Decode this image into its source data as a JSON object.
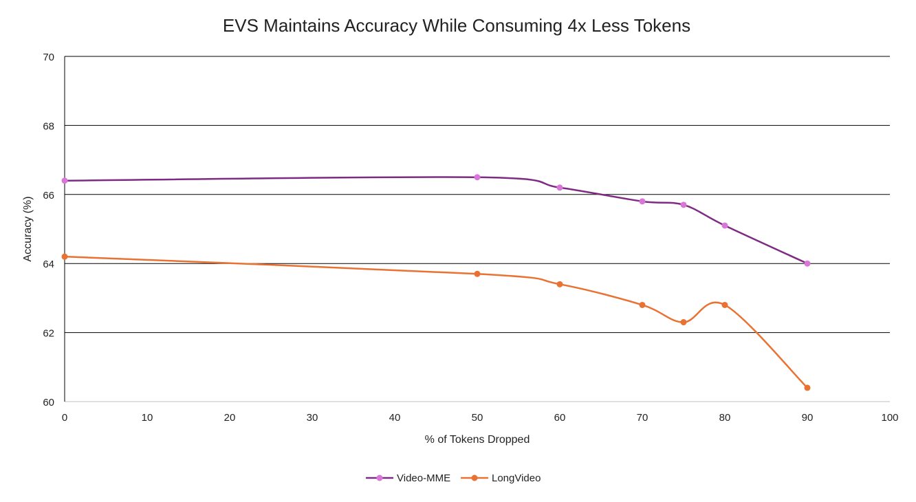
{
  "chart_data": {
    "type": "line",
    "title": "EVS Maintains Accuracy While Consuming 4x Less Tokens",
    "xlabel": "% of Tokens Dropped",
    "ylabel": "Accuracy (%)",
    "xlim": [
      0,
      100
    ],
    "ylim": [
      60,
      70
    ],
    "xticks": [
      0,
      10,
      20,
      30,
      40,
      50,
      60,
      70,
      80,
      90,
      100
    ],
    "yticks": [
      60,
      62,
      64,
      66,
      68,
      70
    ],
    "grid": "horizontal",
    "legend": "bottom",
    "smooth": true,
    "x": [
      0,
      50,
      60,
      70,
      75,
      80,
      90
    ],
    "series": [
      {
        "name": "Video-MME",
        "values": [
          66.4,
          66.5,
          66.2,
          65.8,
          65.7,
          65.1,
          64.0
        ],
        "line_color": "#7E2B84",
        "marker_color": "#D877D8"
      },
      {
        "name": "LongVideo",
        "values": [
          64.2,
          63.7,
          63.4,
          62.8,
          62.3,
          62.8,
          60.4
        ],
        "line_color": "#E97132",
        "marker_color": "#E97132"
      }
    ]
  }
}
